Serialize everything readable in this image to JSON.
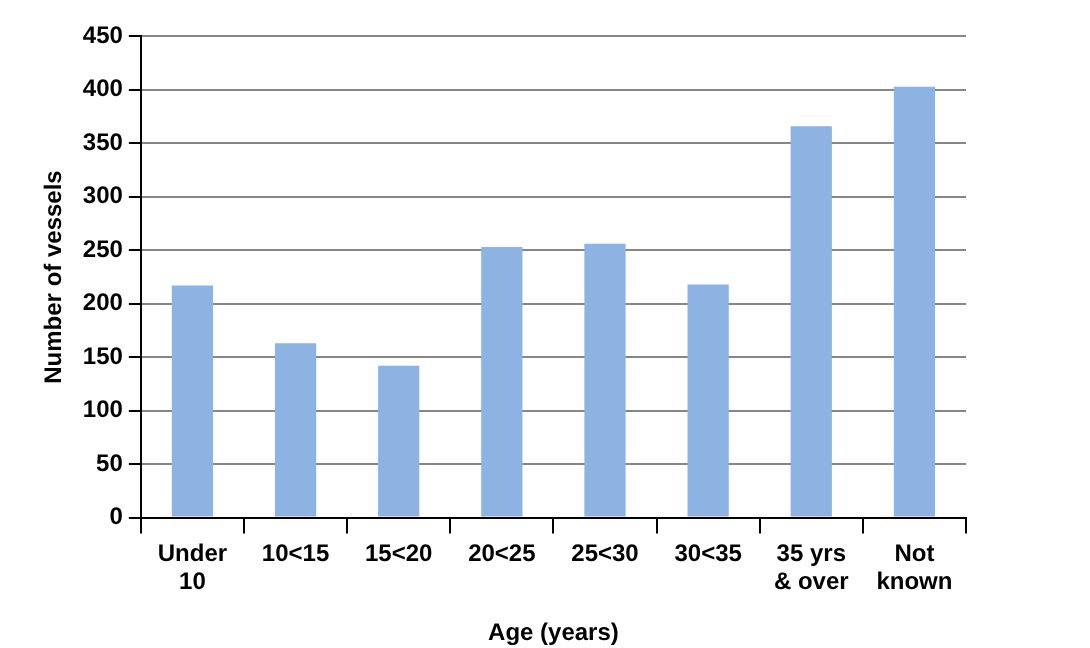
{
  "chart_data": {
    "type": "bar",
    "xlabel": "Age (years)",
    "ylabel": "Number of vessels",
    "categories": [
      "Under 10",
      "10<15",
      "15<20",
      "20<25",
      "25<30",
      "30<35",
      "35 yrs & over",
      "Not known"
    ],
    "values": [
      217,
      163,
      142,
      253,
      256,
      218,
      366,
      403
    ],
    "color": "#8db3e2",
    "ylim": [
      0,
      450
    ],
    "yticks": [
      0,
      50,
      100,
      150,
      200,
      250,
      300,
      350,
      400,
      450
    ],
    "grid": "y"
  }
}
